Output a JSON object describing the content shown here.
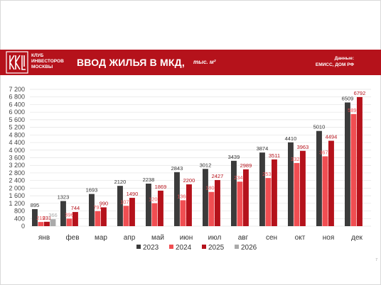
{
  "header": {
    "club_lines": [
      "КЛУБ",
      "ИНВЕСТОРОВ",
      "МОСКВЫ"
    ],
    "title": "ВВОД ЖИЛЬЯ В МКД,",
    "unit": "тыс. м²",
    "source_lines": [
      "Данные:",
      "ЕМИСС, ДОМ РФ"
    ]
  },
  "page_number": "7",
  "colors": {
    "banner": "#b5121b",
    "s2023": "#3b3b3b",
    "s2024": "#f04e52",
    "s2025": "#b5121b",
    "s2026": "#aaaaaa"
  },
  "chart_data": {
    "type": "bar",
    "title": "ВВОД ЖИЛЬЯ В МКД, тыс. м²",
    "categories": [
      "янв",
      "фев",
      "мар",
      "апр",
      "май",
      "июн",
      "июл",
      "авг",
      "сен",
      "окт",
      "ноя",
      "дек"
    ],
    "ylim": [
      0,
      7200
    ],
    "yticks": [
      "0",
      "400",
      "800",
      "1 200",
      "1 600",
      "2 000",
      "2 400",
      "2 800",
      "3 200",
      "3 600",
      "4 000",
      "4 400",
      "4 800",
      "5 200",
      "5 600",
      "6 000",
      "6 400",
      "6 800",
      "7 200"
    ],
    "grid": true,
    "legend_position": "bottom",
    "series": [
      {
        "name": "2023",
        "values": [
          895,
          1323,
          1693,
          2120,
          2238,
          2843,
          3012,
          3439,
          3874,
          4410,
          5010,
          6509
        ]
      },
      {
        "name": "2024",
        "values": [
          219,
          396,
          791,
          1071,
          1208,
          1364,
          1801,
          2342,
          2533,
          3324,
          3674,
          5899
        ]
      },
      {
        "name": "2025",
        "values": [
          231,
          744,
          990,
          1490,
          1869,
          2200,
          2427,
          2989,
          3511,
          3963,
          4494,
          6792
        ]
      },
      {
        "name": "2026",
        "values": [
          366,
          null,
          null,
          null,
          null,
          null,
          null,
          null,
          null,
          null,
          null,
          null
        ]
      }
    ]
  }
}
